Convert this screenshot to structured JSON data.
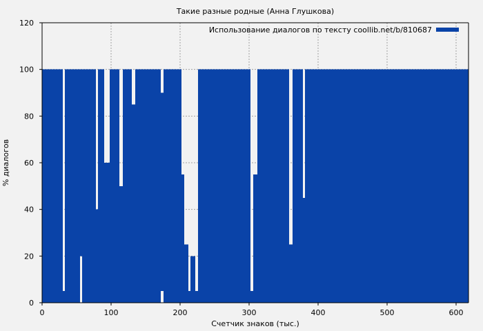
{
  "chart_data": {
    "type": "bar",
    "title": "Такие разные родные (Анна Глушкова)",
    "xlabel": "Счетчик знаков (тыс.)",
    "ylabel": "% диалогов",
    "xlim": [
      0,
      618
    ],
    "ylim": [
      0,
      120
    ],
    "xticks": [
      0,
      100,
      200,
      300,
      400,
      500,
      600
    ],
    "yticks": [
      0,
      20,
      40,
      60,
      80,
      100,
      120
    ],
    "grid": true,
    "legend_position": "top-right",
    "series": [
      {
        "name": "Использование диалогов по тексту coollib.net/b/810687",
        "color": "#0a43a8",
        "segments": [
          {
            "x_start": 0,
            "x_end": 30,
            "low": 0,
            "high": 100
          },
          {
            "x_start": 30,
            "x_end": 33,
            "low": 0,
            "high": 5
          },
          {
            "x_start": 33,
            "x_end": 55,
            "low": 0,
            "high": 100
          },
          {
            "x_start": 55,
            "x_end": 58,
            "low": 20,
            "high": 100
          },
          {
            "x_start": 58,
            "x_end": 78,
            "low": 0,
            "high": 100
          },
          {
            "x_start": 78,
            "x_end": 81,
            "low": 0,
            "high": 40
          },
          {
            "x_start": 81,
            "x_end": 90,
            "low": 0,
            "high": 100
          },
          {
            "x_start": 90,
            "x_end": 98,
            "low": 0,
            "high": 60
          },
          {
            "x_start": 98,
            "x_end": 112,
            "low": 0,
            "high": 100
          },
          {
            "x_start": 112,
            "x_end": 117,
            "low": 0,
            "high": 50
          },
          {
            "x_start": 117,
            "x_end": 130,
            "low": 0,
            "high": 100
          },
          {
            "x_start": 130,
            "x_end": 135,
            "low": 0,
            "high": 85
          },
          {
            "x_start": 135,
            "x_end": 172,
            "low": 0,
            "high": 100
          },
          {
            "x_start": 172,
            "x_end": 176,
            "low": 5,
            "high": 90
          },
          {
            "x_start": 176,
            "x_end": 202,
            "low": 0,
            "high": 100
          },
          {
            "x_start": 202,
            "x_end": 206,
            "low": 0,
            "high": 55
          },
          {
            "x_start": 206,
            "x_end": 212,
            "low": 0,
            "high": 25
          },
          {
            "x_start": 212,
            "x_end": 215,
            "low": 0,
            "high": 5
          },
          {
            "x_start": 215,
            "x_end": 222,
            "low": 0,
            "high": 20
          },
          {
            "x_start": 222,
            "x_end": 226,
            "low": 0,
            "high": 5
          },
          {
            "x_start": 226,
            "x_end": 302,
            "low": 0,
            "high": 100
          },
          {
            "x_start": 302,
            "x_end": 306,
            "low": 0,
            "high": 5
          },
          {
            "x_start": 306,
            "x_end": 312,
            "low": 0,
            "high": 55
          },
          {
            "x_start": 312,
            "x_end": 358,
            "low": 0,
            "high": 100
          },
          {
            "x_start": 358,
            "x_end": 363,
            "low": 0,
            "high": 25
          },
          {
            "x_start": 363,
            "x_end": 378,
            "low": 0,
            "high": 100
          },
          {
            "x_start": 378,
            "x_end": 381,
            "low": 0,
            "high": 45
          },
          {
            "x_start": 381,
            "x_end": 395,
            "low": 0,
            "high": 100
          },
          {
            "x_start": 395,
            "x_end": 618,
            "low": 0,
            "high": 100
          }
        ]
      }
    ]
  }
}
